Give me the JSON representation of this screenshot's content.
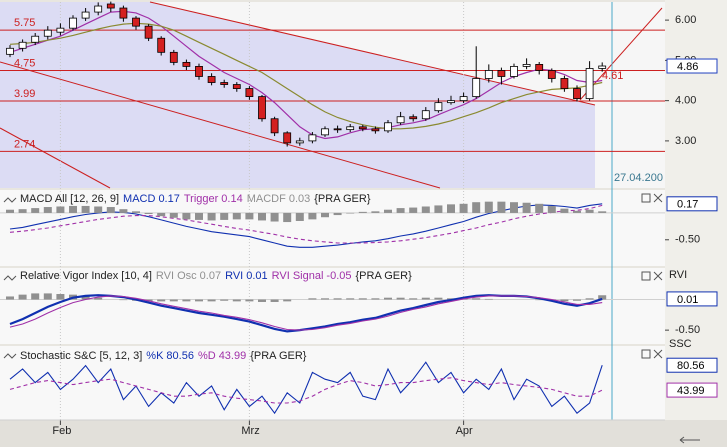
{
  "chart_data": [
    {
      "type": "candlestick",
      "categories": [
        null,
        null,
        null,
        null,
        "Feb",
        null,
        null,
        null,
        null,
        null,
        null,
        null,
        null,
        null,
        null,
        null,
        null,
        null,
        null,
        "Mrz",
        null,
        null,
        null,
        null,
        null,
        null,
        null,
        null,
        null,
        null,
        null,
        null,
        null,
        null,
        null,
        null,
        "Apr",
        null,
        null,
        null,
        null,
        null,
        null,
        null,
        null,
        null,
        null,
        null
      ],
      "open": [
        5.15,
        5.3,
        5.45,
        5.6,
        5.7,
        5.8,
        6.05,
        6.2,
        6.4,
        6.3,
        6.05,
        5.85,
        5.55,
        5.2,
        4.95,
        4.85,
        4.6,
        4.45,
        4.4,
        4.3,
        4.1,
        3.55,
        3.2,
        2.95,
        3.0,
        3.15,
        3.3,
        3.28,
        3.35,
        3.3,
        3.25,
        3.45,
        3.6,
        3.55,
        3.75,
        3.95,
        4.0,
        4.1,
        4.55,
        4.75,
        4.6,
        4.85,
        4.9,
        4.75,
        4.55,
        4.3,
        4.05,
        4.8
      ],
      "high": [
        5.38,
        5.52,
        5.68,
        5.85,
        5.92,
        6.12,
        6.3,
        6.44,
        6.46,
        6.36,
        6.1,
        5.9,
        5.6,
        5.26,
        5.02,
        4.92,
        4.68,
        4.52,
        4.46,
        4.36,
        4.14,
        3.6,
        3.24,
        3.08,
        3.22,
        3.36,
        3.38,
        3.42,
        3.4,
        3.36,
        3.52,
        3.72,
        3.66,
        3.84,
        4.06,
        4.12,
        4.2,
        5.35,
        4.9,
        4.82,
        4.92,
        5.05,
        4.96,
        4.8,
        4.62,
        4.38,
        4.98,
        4.95
      ],
      "low": [
        5.08,
        5.22,
        5.38,
        5.52,
        5.62,
        5.74,
        5.98,
        6.12,
        6.2,
        5.96,
        5.76,
        5.48,
        5.12,
        4.88,
        4.76,
        4.52,
        4.38,
        4.32,
        4.22,
        4.02,
        3.48,
        3.12,
        2.86,
        2.88,
        2.94,
        3.1,
        3.2,
        3.22,
        3.24,
        3.18,
        3.2,
        3.4,
        3.48,
        3.5,
        3.7,
        3.9,
        3.94,
        4.05,
        4.45,
        4.4,
        4.55,
        4.78,
        4.65,
        4.45,
        4.22,
        3.98,
        4.0,
        4.72
      ],
      "close": [
        5.3,
        5.45,
        5.6,
        5.75,
        5.8,
        6.05,
        6.2,
        6.35,
        6.3,
        6.05,
        5.85,
        5.55,
        5.2,
        4.95,
        4.85,
        4.6,
        4.45,
        4.4,
        4.3,
        4.1,
        3.55,
        3.2,
        2.95,
        3.0,
        3.15,
        3.3,
        3.28,
        3.35,
        3.3,
        3.25,
        3.45,
        3.6,
        3.55,
        3.75,
        3.95,
        4.0,
        4.1,
        4.55,
        4.75,
        4.6,
        4.85,
        4.9,
        4.75,
        4.55,
        4.3,
        4.05,
        4.8,
        4.86
      ],
      "up_color": "#ffffff",
      "down_color": "#d42020",
      "series": [
        {
          "color": "#a030a8",
          "values": [
            5.2,
            5.3,
            5.4,
            5.5,
            5.6,
            5.75,
            5.9,
            6.05,
            6.2,
            6.22,
            6.18,
            6.05,
            5.85,
            5.6,
            5.35,
            5.1,
            4.9,
            4.7,
            4.55,
            4.4,
            4.2,
            3.95,
            3.65,
            3.35,
            3.15,
            3.06,
            3.1,
            3.2,
            3.28,
            3.3,
            3.33,
            3.4,
            3.45,
            3.52,
            3.65,
            3.78,
            3.9,
            4.05,
            4.25,
            4.45,
            4.6,
            4.7,
            4.78,
            4.75,
            4.65,
            4.5,
            4.45,
            4.5
          ]
        },
        {
          "color": "#8a8a30",
          "values": [
            5.4,
            5.42,
            5.45,
            5.5,
            5.55,
            5.62,
            5.7,
            5.78,
            5.85,
            5.9,
            5.92,
            5.9,
            5.85,
            5.75,
            5.6,
            5.45,
            5.3,
            5.15,
            5.0,
            4.85,
            4.7,
            4.5,
            4.3,
            4.1,
            3.9,
            3.72,
            3.58,
            3.48,
            3.4,
            3.34,
            3.3,
            3.3,
            3.32,
            3.36,
            3.42,
            3.5,
            3.6,
            3.7,
            3.82,
            3.95,
            4.05,
            4.15,
            4.22,
            4.28,
            4.3,
            4.32,
            4.38,
            4.45
          ]
        }
      ],
      "hlines": [
        5.75,
        4.75,
        3.99,
        2.74
      ],
      "hline_color": "#cc2020",
      "trendline_value": 4.61,
      "date_marker": "27.04.200",
      "axis_flag_color": "#2040c0",
      "ylim": [
        1.83,
        6.45
      ],
      "yticks": [
        {
          "value": 3,
          "label": "3.00"
        },
        {
          "value": 4,
          "label": "4.00"
        },
        {
          "value": 5,
          "label": "5.00"
        },
        {
          "value": 6,
          "label": "6.00"
        }
      ]
    },
    {
      "type": "line",
      "title": "MACD All [12, 26, 9]",
      "source": "{PRA GER}",
      "series": [
        {
          "name": "MACD",
          "color": "#1030b0",
          "axis_flag": true,
          "values": [
            -0.3,
            -0.27,
            -0.22,
            -0.17,
            -0.12,
            -0.07,
            -0.03,
            0.0,
            0.02,
            0.01,
            -0.02,
            -0.07,
            -0.13,
            -0.19,
            -0.25,
            -0.3,
            -0.35,
            -0.38,
            -0.41,
            -0.44,
            -0.5,
            -0.56,
            -0.62,
            -0.64,
            -0.64,
            -0.62,
            -0.6,
            -0.57,
            -0.54,
            -0.52,
            -0.48,
            -0.43,
            -0.39,
            -0.34,
            -0.28,
            -0.22,
            -0.16,
            -0.08,
            -0.01,
            0.04,
            0.09,
            0.13,
            0.15,
            0.14,
            0.12,
            0.09,
            0.14,
            0.17
          ]
        },
        {
          "name": "Trigger",
          "color": "#a030a8",
          "dashed": true,
          "values": [
            -0.36,
            -0.34,
            -0.31,
            -0.28,
            -0.24,
            -0.2,
            -0.16,
            -0.12,
            -0.09,
            -0.06,
            -0.05,
            -0.05,
            -0.07,
            -0.1,
            -0.13,
            -0.17,
            -0.21,
            -0.25,
            -0.29,
            -0.32,
            -0.36,
            -0.4,
            -0.45,
            -0.49,
            -0.52,
            -0.54,
            -0.56,
            -0.56,
            -0.56,
            -0.55,
            -0.54,
            -0.52,
            -0.49,
            -0.46,
            -0.42,
            -0.38,
            -0.33,
            -0.28,
            -0.22,
            -0.17,
            -0.11,
            -0.06,
            -0.02,
            0.01,
            0.04,
            0.05,
            0.08,
            0.14
          ]
        },
        {
          "name": "MACDF",
          "color": "#909090",
          "bars": true,
          "values": [
            0.06,
            0.07,
            0.09,
            0.11,
            0.12,
            0.13,
            0.13,
            0.12,
            0.11,
            0.07,
            0.03,
            -0.02,
            -0.06,
            -0.09,
            -0.12,
            -0.13,
            -0.14,
            -0.13,
            -0.12,
            -0.12,
            -0.14,
            -0.16,
            -0.17,
            -0.15,
            -0.12,
            -0.08,
            -0.04,
            -0.01,
            0.02,
            0.03,
            0.06,
            0.09,
            0.1,
            0.12,
            0.14,
            0.16,
            0.17,
            0.2,
            0.21,
            0.21,
            0.2,
            0.19,
            0.17,
            0.13,
            0.08,
            0.04,
            0.06,
            0.03
          ]
        }
      ],
      "ylim": [
        -0.97,
        0.39
      ],
      "yticks": [
        {
          "value": -0.5,
          "label": "-0.50"
        }
      ]
    },
    {
      "type": "line",
      "title": "Relative Vigor Index [10, 4]",
      "source": "{PRA GER}",
      "axis_label": "RVI",
      "series": [
        {
          "name": "RVI Osc",
          "color": "#909090",
          "bars": true,
          "values": [
            0.05,
            0.08,
            0.1,
            0.1,
            0.09,
            0.08,
            0.06,
            0.03,
            0.0,
            -0.01,
            -0.02,
            -0.03,
            -0.03,
            -0.03,
            -0.03,
            -0.03,
            -0.03,
            -0.02,
            -0.03,
            -0.03,
            -0.04,
            -0.04,
            -0.03,
            0.0,
            0.02,
            0.02,
            0.02,
            0.02,
            0.02,
            0.02,
            0.03,
            0.03,
            0.02,
            0.03,
            0.03,
            0.02,
            0.02,
            0.02,
            0.01,
            0.0,
            0.0,
            0.0,
            -0.01,
            -0.02,
            -0.03,
            -0.02,
            0.02,
            0.07
          ]
        },
        {
          "name": "RVI",
          "color": "#1030b0",
          "thick": true,
          "axis_flag": true,
          "values": [
            -0.4,
            -0.32,
            -0.22,
            -0.12,
            -0.04,
            0.03,
            0.06,
            0.07,
            0.06,
            0.04,
            0.0,
            -0.05,
            -0.1,
            -0.14,
            -0.18,
            -0.22,
            -0.25,
            -0.28,
            -0.32,
            -0.36,
            -0.42,
            -0.48,
            -0.52,
            -0.5,
            -0.47,
            -0.44,
            -0.4,
            -0.37,
            -0.33,
            -0.3,
            -0.24,
            -0.18,
            -0.14,
            -0.09,
            -0.04,
            -0.01,
            0.03,
            0.06,
            0.07,
            0.06,
            0.06,
            0.05,
            0.02,
            -0.02,
            -0.07,
            -0.1,
            -0.06,
            0.01
          ]
        },
        {
          "name": "RVI Signal",
          "color": "#a030a8",
          "values": [
            -0.45,
            -0.4,
            -0.32,
            -0.22,
            -0.13,
            -0.05,
            0.0,
            0.04,
            0.06,
            0.05,
            0.02,
            -0.02,
            -0.07,
            -0.11,
            -0.15,
            -0.19,
            -0.22,
            -0.26,
            -0.29,
            -0.33,
            -0.38,
            -0.44,
            -0.49,
            -0.5,
            -0.49,
            -0.46,
            -0.42,
            -0.39,
            -0.35,
            -0.32,
            -0.27,
            -0.21,
            -0.16,
            -0.12,
            -0.07,
            -0.03,
            0.01,
            0.04,
            0.06,
            0.06,
            0.06,
            0.05,
            0.03,
            0.0,
            -0.04,
            -0.08,
            -0.08,
            -0.05
          ]
        }
      ],
      "ylim": [
        -0.71,
        0.27
      ],
      "yticks": [
        {
          "value": -0.5,
          "label": "-0.50"
        }
      ]
    },
    {
      "type": "line",
      "title": "Stochastic S&C [5, 12, 3]",
      "source": "{PRA GER}",
      "axis_label": "SSC",
      "series": [
        {
          "name": "%K",
          "color": "#1030b0",
          "axis_flag": true,
          "values": [
            60,
            75,
            55,
            70,
            45,
            60,
            80,
            55,
            75,
            30,
            50,
            20,
            40,
            25,
            55,
            35,
            50,
            15,
            45,
            20,
            35,
            10,
            40,
            25,
            70,
            60,
            55,
            70,
            35,
            30,
            75,
            40,
            60,
            85,
            55,
            70,
            40,
            60,
            45,
            75,
            30,
            60,
            50,
            20,
            35,
            10,
            25,
            80.56
          ]
        },
        {
          "name": "%D",
          "color": "#a030a8",
          "dashed": true,
          "axis_flag": true,
          "values": [
            45,
            50,
            55,
            58,
            55,
            52,
            55,
            58,
            60,
            55,
            50,
            45,
            40,
            35,
            35,
            38,
            40,
            35,
            32,
            30,
            28,
            25,
            25,
            28,
            35,
            45,
            52,
            58,
            55,
            50,
            52,
            55,
            55,
            58,
            60,
            62,
            58,
            55,
            52,
            55,
            52,
            50,
            48,
            45,
            40,
            35,
            35,
            43.99
          ]
        }
      ],
      "ylim": [
        0,
        100
      ],
      "yticks": []
    }
  ]
}
